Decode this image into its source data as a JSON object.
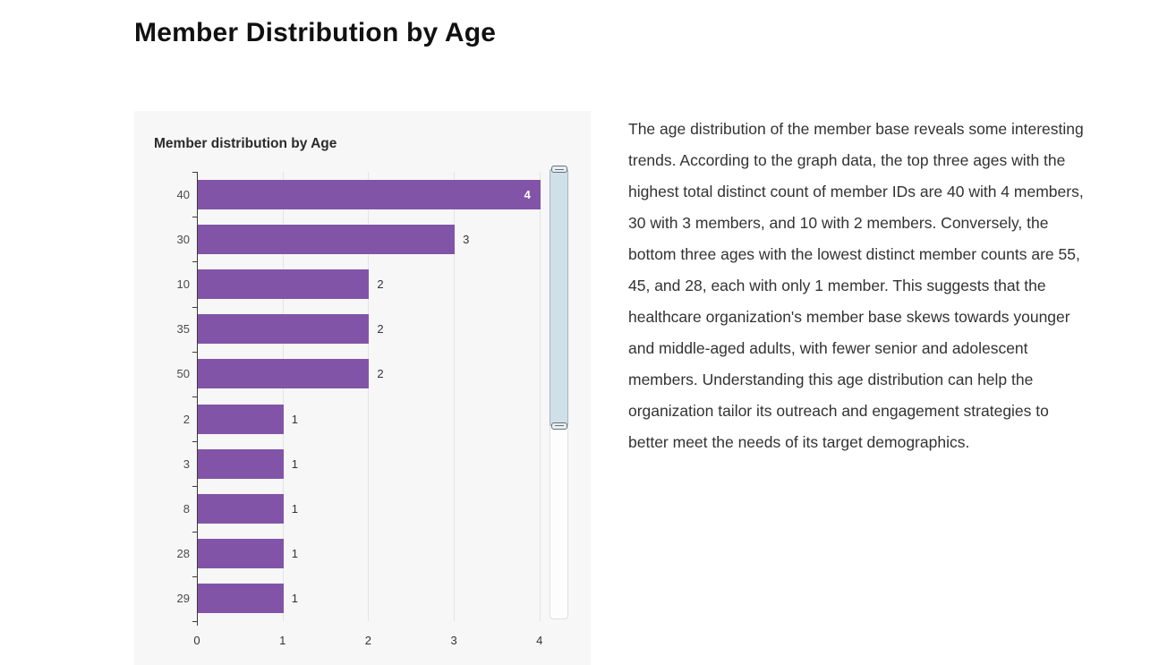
{
  "page": {
    "title": "Member Distribution by Age"
  },
  "chart": {
    "title": "Member distribution by Age",
    "colors": {
      "bar": "#8254a8",
      "panel_bg": "#f7f7f7",
      "grid": "#e4e4e4",
      "axis": "#3a3a3a",
      "category_label": "#4a4a4a",
      "value_label": "#333333",
      "value_label_inside": "#ffffff",
      "zoom_fill": "#cfe0e9",
      "zoom_border": "#a3b6bf"
    },
    "scrollbar": {
      "type": "vertical-data-zoom",
      "selected_fraction_start": 0,
      "selected_fraction_end": 0.57
    }
  },
  "chart_data": {
    "type": "bar",
    "orientation": "horizontal",
    "title": "Member distribution by Age",
    "categories": [
      "40",
      "30",
      "10",
      "35",
      "50",
      "2",
      "3",
      "8",
      "28",
      "29"
    ],
    "values": [
      4,
      3,
      2,
      2,
      2,
      1,
      1,
      1,
      1,
      1
    ],
    "series_name": "Total distinct count of member IDs",
    "xlabel": "",
    "ylabel": "",
    "x_ticks": [
      0,
      1,
      2,
      3,
      4
    ],
    "xlim": [
      0,
      4.38
    ],
    "grid": true,
    "legend": false,
    "value_labels_shown": true
  },
  "description": {
    "text": "The age distribution of the member base reveals some interesting trends. According to the graph data, the top three ages with the highest total distinct count of member IDs are 40 with 4 members, 30 with 3 members, and 10 with 2 members. Conversely, the bottom three ages with the lowest distinct member counts are 55, 45, and 28, each with only 1 member. This suggests that the healthcare organization's member base skews towards younger and middle-aged adults, with fewer senior and adolescent members. Understanding this age distribution can help the organization tailor its outreach and engagement strategies to better meet the needs of its target demographics."
  }
}
